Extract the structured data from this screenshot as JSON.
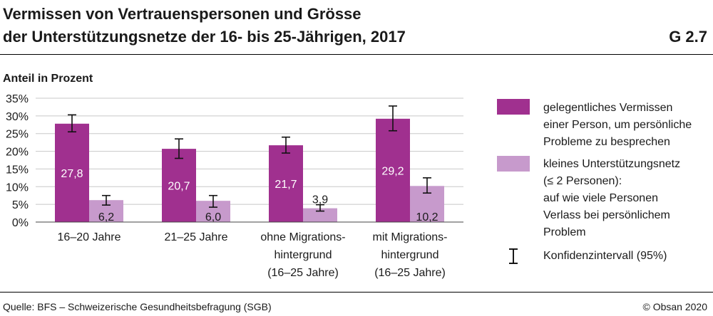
{
  "header": {
    "title_line1": "Vermissen von Vertrauenspersonen und Grösse",
    "title_line2": "der Unterstützungsnetze der 16- bis 25-Jährigen, 2017",
    "code": "G 2.7",
    "unit": "Anteil in Prozent"
  },
  "legend": {
    "series1": "gelegentliches Vermissen einer Person, um persönliche Probleme zu besprechen",
    "series1_lines": [
      "gelegentliches Vermissen",
      "einer Person, um persönliche",
      "Probleme zu besprechen"
    ],
    "series2": "kleines Unterstützungsnetz (≤ 2 Personen): auf wie viele Personen Verlass bei persönlichem Problem",
    "series2_lines": [
      "kleines Unterstützungsnetz",
      "(≤ 2 Personen):",
      "auf wie viele Personen",
      "Verlass bei persönlichem",
      "Problem"
    ],
    "ci": "Konfidenzintervall (95%)"
  },
  "footer": {
    "source": "Quelle: BFS – Schweizerische Gesundheitsbefragung (SGB)",
    "copyright": "© Obsan 2020"
  },
  "chart_data": {
    "type": "bar",
    "title": "Vermissen von Vertrauenspersonen und Grösse der Unterstützungsnetze der 16- bis 25-Jährigen, 2017",
    "ylabel": "Anteil in Prozent",
    "ylim": [
      0,
      35
    ],
    "yticks": [
      0,
      5,
      10,
      15,
      20,
      25,
      30,
      35
    ],
    "ytick_labels": [
      "0%",
      "5%",
      "10%",
      "15%",
      "20%",
      "25%",
      "30%",
      "35%"
    ],
    "categories": [
      "16–20 Jahre",
      "21–25 Jahre",
      "ohne Migrationshintergrund (16–25 Jahre)",
      "mit Migrationshintergrund (16–25 Jahre)"
    ],
    "category_lines": [
      [
        "16–20 Jahre"
      ],
      [
        "21–25 Jahre"
      ],
      [
        "ohne Migrations-",
        "hintergrund",
        "(16–25 Jahre)"
      ],
      [
        "mit Migrations-",
        "hintergrund",
        "(16–25 Jahre)"
      ]
    ],
    "series": [
      {
        "name": "gelegentliches Vermissen einer Person, um persönliche Probleme zu besprechen",
        "color": "#a0308f",
        "values": [
          27.8,
          20.7,
          21.7,
          29.2
        ],
        "labels": [
          "27,8",
          "20,7",
          "21,7",
          "29,2"
        ],
        "ci_low": [
          25.5,
          18.0,
          19.5,
          25.8
        ],
        "ci_high": [
          30.3,
          23.5,
          24.0,
          32.8
        ]
      },
      {
        "name": "kleines Unterstützungsnetz (≤ 2 Personen): auf wie viele Personen Verlass bei persönlichem Problem",
        "color": "#c79acc",
        "values": [
          6.2,
          6.0,
          3.9,
          10.2
        ],
        "labels": [
          "6,2",
          "6,0",
          "3,9",
          "10,2"
        ],
        "ci_low": [
          4.8,
          4.2,
          3.1,
          8.2
        ],
        "ci_high": [
          7.5,
          7.5,
          4.9,
          12.5
        ]
      }
    ],
    "grid": true,
    "legend_position": "right"
  }
}
